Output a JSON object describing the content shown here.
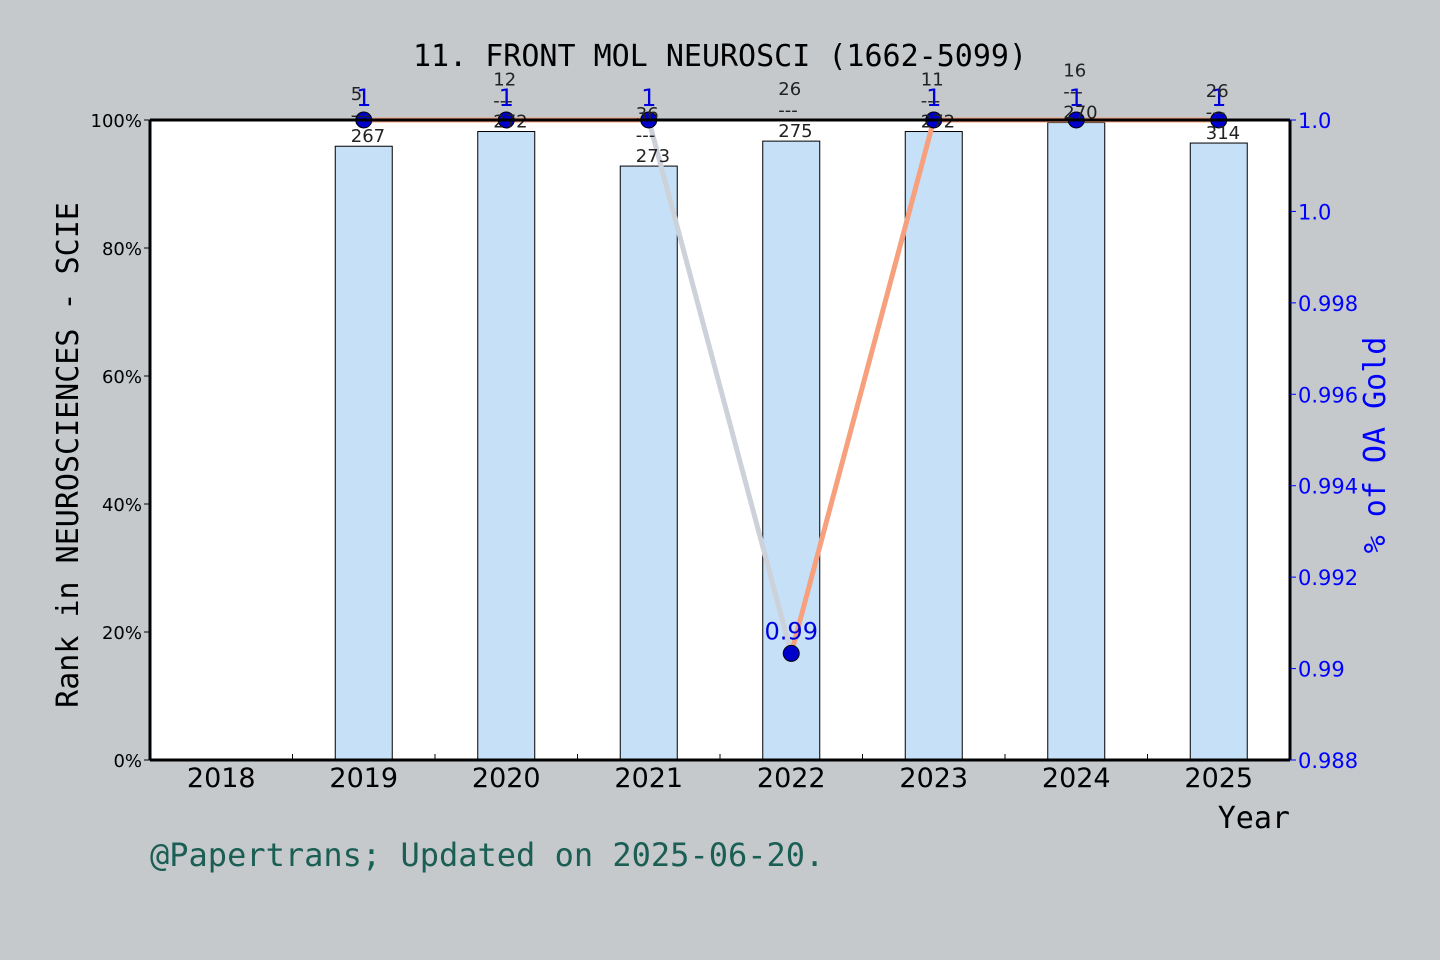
{
  "chart_data": {
    "type": "bar",
    "title": "11. FRONT MOL NEUROSCI (1662-5099)",
    "xlabel": "Year",
    "ylabel": "Rank in NEUROSCIENCES - SCIE",
    "y2label": "% of OA Gold",
    "footer": "@Papertrans; Updated on 2025-06-20.",
    "categories": [
      "2018",
      "2019",
      "2020",
      "2021",
      "2022",
      "2023",
      "2024",
      "2025"
    ],
    "ylim": [
      0,
      100
    ],
    "y_ticks": [
      "0%",
      "20%",
      "40%",
      "60%",
      "80%",
      "100%"
    ],
    "y2lim": [
      0.988,
      1.0
    ],
    "y2_ticks": [
      "0.988",
      "0.99",
      "0.992",
      "0.994",
      "0.996",
      "0.998",
      "1.0",
      "1.0"
    ],
    "series": [
      {
        "kind": "bar",
        "values": [
          null,
          95.9,
          98.2,
          92.8,
          96.7,
          98.2,
          99.6,
          96.4
        ],
        "labels": [
          null,
          "5\n---\n267",
          "12\n---\n272",
          "36\n---\n273",
          "26\n---\n275",
          "11\n---\n272",
          "16\n---\n270",
          "26\n---\n314"
        ]
      },
      {
        "kind": "line",
        "axis": "right",
        "values": [
          null,
          1.0,
          1.0,
          1.0,
          0.99,
          1.0,
          1.0,
          1.0
        ],
        "labels": [
          null,
          "1",
          "1",
          "1",
          "0.99",
          "1",
          "1",
          "1"
        ]
      }
    ],
    "grid": false,
    "colors": {
      "background": "#c5c9cc",
      "plot": "#ffffff",
      "bar_fill": "#c5e0f7",
      "line_rise": "#f7a07e",
      "line_fall": "#cdd1da",
      "marker": "#0000cc",
      "right_axis": "#0000ff",
      "footer": "#1b5e54"
    }
  }
}
